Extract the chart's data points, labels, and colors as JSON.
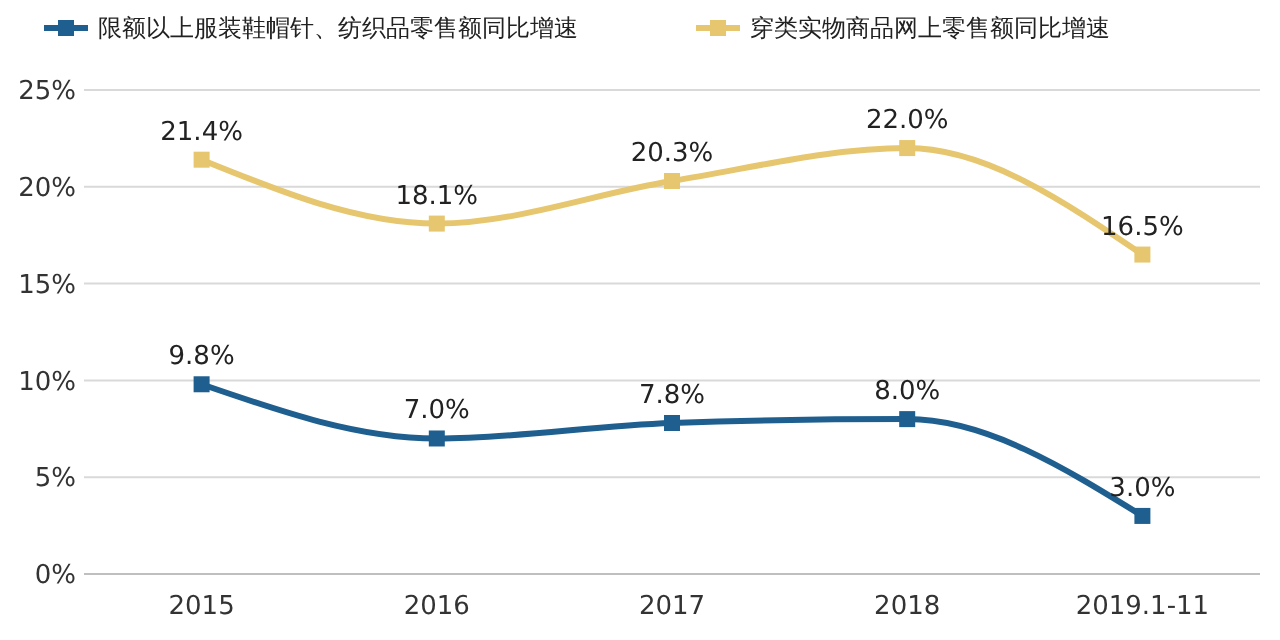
{
  "chart_data": {
    "type": "line",
    "categories": [
      "2015",
      "2016",
      "2017",
      "2018",
      "2019.1-11"
    ],
    "series": [
      {
        "name": "限额以上服装鞋帽针、纺织品零售额同比增速",
        "color": "#1f5f8f",
        "values": [
          9.8,
          7.0,
          7.8,
          8.0,
          3.0
        ],
        "value_labels": [
          "9.8%",
          "7.0%",
          "7.8%",
          "8.0%",
          "3.0%"
        ]
      },
      {
        "name": "穿类实物商品网上零售额同比增速",
        "color": "#e6c66e",
        "values": [
          21.4,
          18.1,
          20.3,
          22.0,
          16.5
        ],
        "value_labels": [
          "21.4%",
          "18.1%",
          "20.3%",
          "22.0%",
          "16.5%"
        ]
      }
    ],
    "ylim": [
      0,
      25
    ],
    "yticks": [
      {
        "value": 0,
        "label": "0%"
      },
      {
        "value": 5,
        "label": "5%"
      },
      {
        "value": 10,
        "label": "10%"
      },
      {
        "value": 15,
        "label": "15%"
      },
      {
        "value": 20,
        "label": "20%"
      },
      {
        "value": 25,
        "label": "25%"
      }
    ],
    "grid": "y",
    "legend": "top",
    "marker": "square"
  }
}
